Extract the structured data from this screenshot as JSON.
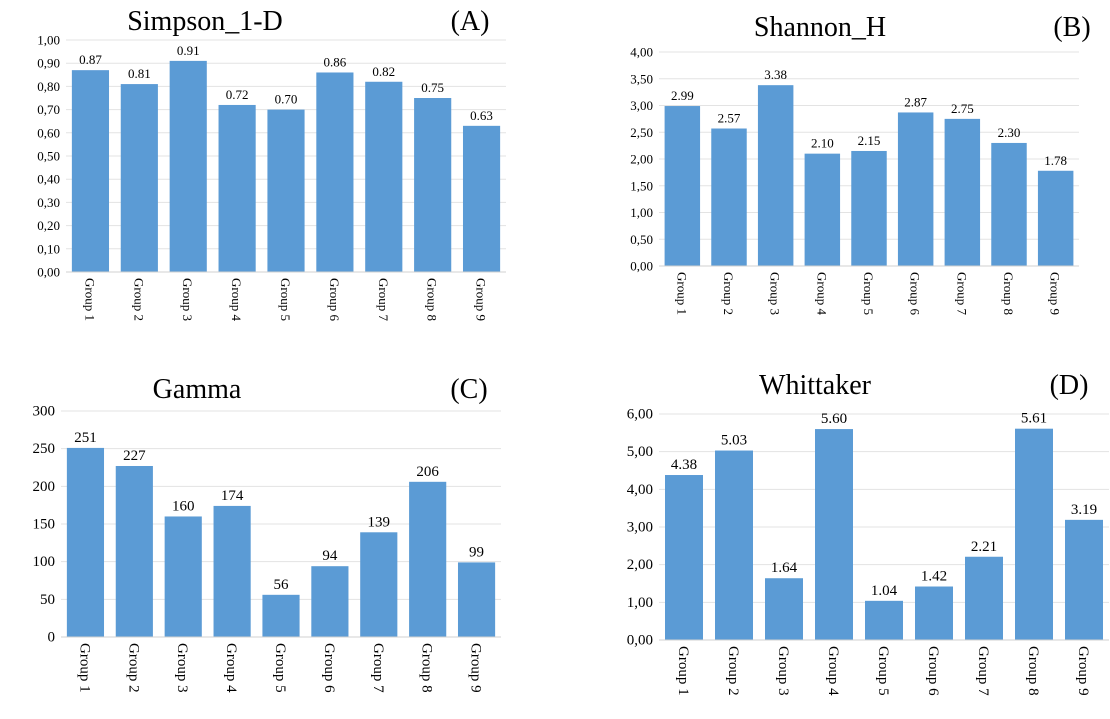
{
  "chart_data": [
    {
      "type": "bar",
      "title": "Simpson_1-D",
      "panel": "(A)",
      "categories": [
        "Group 1",
        "Group 2",
        "Group 3",
        "Group 4",
        "Group 5",
        "Group 6",
        "Group 7",
        "Group 8",
        "Group 9"
      ],
      "values": [
        0.87,
        0.81,
        0.91,
        0.72,
        0.7,
        0.86,
        0.82,
        0.75,
        0.63
      ],
      "data_labels": [
        "0.87",
        "0.81",
        "0.91",
        "0.72",
        "0.70",
        "0.86",
        "0.82",
        "0.75",
        "0.63"
      ],
      "ylim": [
        0,
        1
      ],
      "yticks": [
        "0,00",
        "0,10",
        "0,20",
        "0,30",
        "0,40",
        "0,50",
        "0,60",
        "0,70",
        "0,80",
        "0,90",
        "1,00"
      ],
      "xlabel": "",
      "ylabel": "",
      "grid": true,
      "bar_color": "#5b9bd5"
    },
    {
      "type": "bar",
      "title": "Shannon_H",
      "panel": "(B)",
      "categories": [
        "Group 1",
        "Group 2",
        "Group 3",
        "Group 4",
        "Group 5",
        "Group 6",
        "Group 7",
        "Group 8",
        "Group 9"
      ],
      "values": [
        2.99,
        2.57,
        3.38,
        2.1,
        2.15,
        2.87,
        2.75,
        2.3,
        1.78
      ],
      "data_labels": [
        "2.99",
        "2.57",
        "3.38",
        "2.10",
        "2.15",
        "2.87",
        "2.75",
        "2.30",
        "1.78"
      ],
      "ylim": [
        0,
        4
      ],
      "yticks": [
        "0,00",
        "0,50",
        "1,00",
        "1,50",
        "2,00",
        "2,50",
        "3,00",
        "3,50",
        "4,00"
      ],
      "xlabel": "",
      "ylabel": "",
      "grid": true,
      "bar_color": "#5b9bd5"
    },
    {
      "type": "bar",
      "title": "Gamma",
      "panel": "(C)",
      "categories": [
        "Group 1",
        "Group 2",
        "Group 3",
        "Group 4",
        "Group 5",
        "Group 6",
        "Group 7",
        "Group 8",
        "Group 9"
      ],
      "values": [
        251,
        227,
        160,
        174,
        56,
        94,
        139,
        206,
        99
      ],
      "data_labels": [
        "251",
        "227",
        "160",
        "174",
        "56",
        "94",
        "139",
        "206",
        "99"
      ],
      "ylim": [
        0,
        300
      ],
      "yticks": [
        "0",
        "50",
        "100",
        "150",
        "200",
        "250",
        "300"
      ],
      "xlabel": "",
      "ylabel": "",
      "grid": true,
      "bar_color": "#5b9bd5"
    },
    {
      "type": "bar",
      "title": "Whittaker",
      "panel": "(D)",
      "categories": [
        "Group 1",
        "Group 2",
        "Group 3",
        "Group 4",
        "Group 5",
        "Group 6",
        "Group 7",
        "Group 8",
        "Group 9"
      ],
      "values": [
        4.38,
        5.03,
        1.64,
        5.6,
        1.04,
        1.42,
        2.21,
        5.61,
        3.19
      ],
      "data_labels": [
        "4.38",
        "5.03",
        "1.64",
        "5.60",
        "1.04",
        "1.42",
        "2.21",
        "5.61",
        "3.19"
      ],
      "ylim": [
        0,
        6
      ],
      "yticks": [
        "0,00",
        "1,00",
        "2,00",
        "3,00",
        "4,00",
        "5,00",
        "6,00"
      ],
      "xlabel": "",
      "ylabel": "",
      "grid": true,
      "bar_color": "#5b9bd5"
    }
  ]
}
